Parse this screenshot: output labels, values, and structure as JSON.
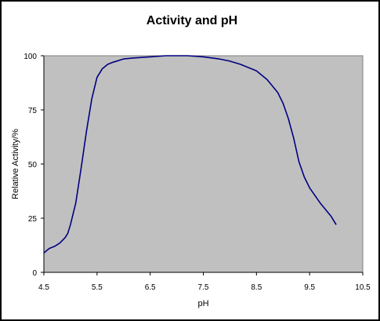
{
  "chart_data": {
    "type": "line",
    "title": "Activity and pH",
    "xlabel": "pH",
    "ylabel": "Relative Activity/%",
    "xlim": [
      4.5,
      10.5
    ],
    "ylim": [
      0,
      100
    ],
    "x_ticks": [
      "4.5",
      "5.5",
      "6.5",
      "7.5",
      "8.5",
      "9.5",
      "10.5"
    ],
    "y_ticks": [
      "0",
      "25",
      "50",
      "75",
      "100"
    ],
    "grid": false,
    "legend": "none",
    "colors": {
      "plot_background": "#c0c0c0",
      "line": "#000080",
      "axis": "#000000"
    },
    "series": [
      {
        "x": [
          4.5,
          4.6,
          4.7,
          4.8,
          4.9,
          4.95,
          5.0,
          5.1,
          5.2,
          5.3,
          5.4,
          5.5,
          5.6,
          5.7,
          5.8,
          6.0,
          6.2,
          6.5,
          6.8,
          7.0,
          7.2,
          7.5,
          7.8,
          8.0,
          8.2,
          8.5,
          8.7,
          8.9,
          9.0,
          9.1,
          9.2,
          9.3,
          9.4,
          9.5,
          9.7,
          9.9,
          10.0
        ],
        "y": [
          9,
          11,
          12,
          13.5,
          16,
          18,
          22,
          32,
          48,
          65,
          80,
          90,
          94,
          96,
          97,
          98.5,
          99,
          99.5,
          100,
          100,
          100,
          99.5,
          98.5,
          97.5,
          96,
          93,
          89,
          83,
          78,
          71,
          62,
          51,
          44,
          39,
          32,
          26,
          22
        ]
      }
    ]
  }
}
